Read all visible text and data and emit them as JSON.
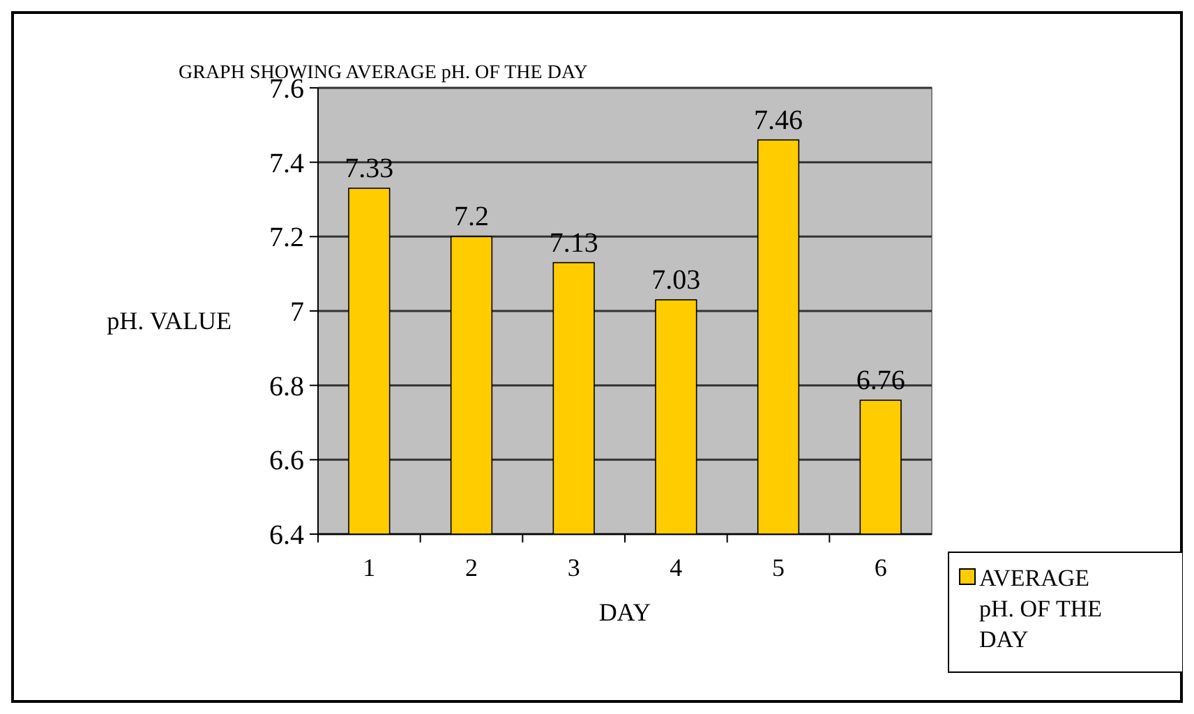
{
  "chart_data": {
    "type": "bar",
    "title": "GRAPH SHOWING AVERAGE pH. OF THE DAY",
    "xlabel": "DAY",
    "ylabel": "pH. VALUE",
    "categories": [
      "1",
      "2",
      "3",
      "4",
      "5",
      "6"
    ],
    "series": [
      {
        "name": "AVERAGE pH. OF THE DAY",
        "color": "#ffcc00",
        "values": [
          7.33,
          7.2,
          7.13,
          7.03,
          7.46,
          6.76
        ]
      }
    ],
    "ylim": [
      6.4,
      7.6
    ],
    "yticks": [
      6.4,
      6.6,
      6.8,
      7,
      7.2,
      7.4,
      7.6
    ],
    "grid": "y",
    "legend": "bottom right",
    "data_labels": true
  }
}
